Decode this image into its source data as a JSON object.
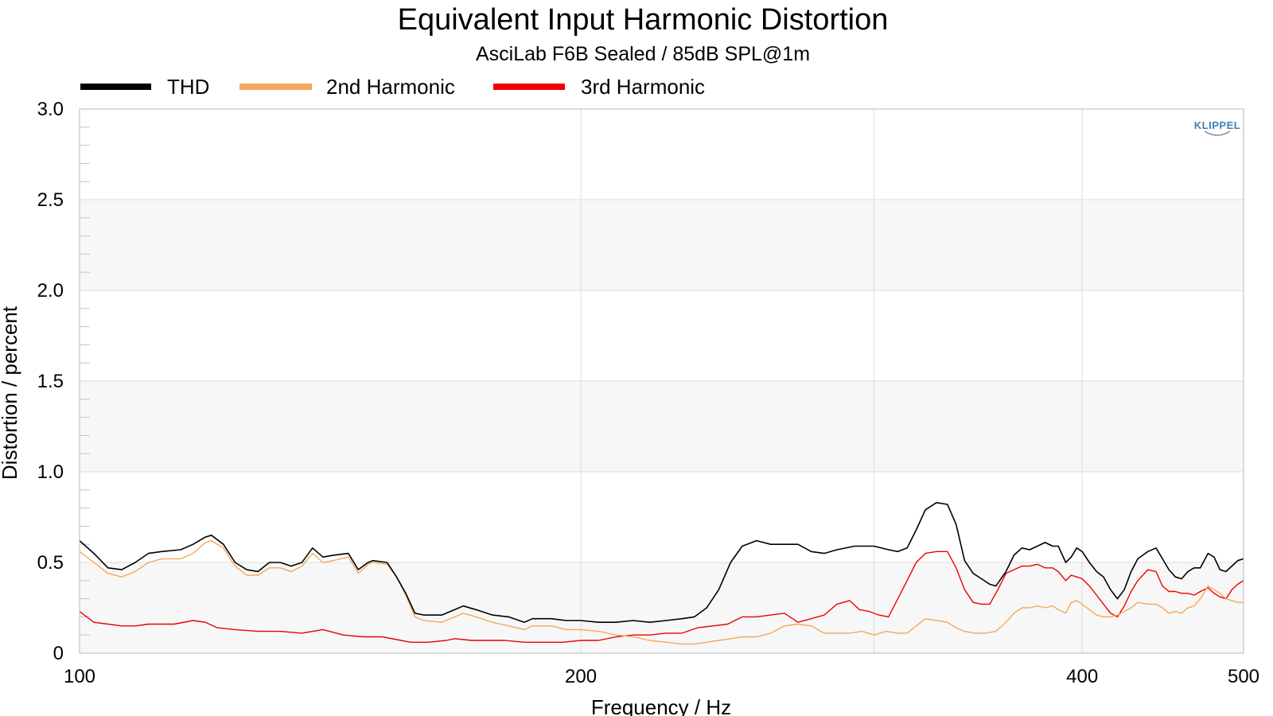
{
  "chart_data": {
    "type": "line",
    "title": "Equivalent Input Harmonic Distortion",
    "subtitle": "AsciLab F6B Sealed / 85dB SPL@1m",
    "xlabel": "Frequency / Hz",
    "ylabel": "Distortion / percent",
    "x_scale": "log",
    "xlim": [
      100,
      500
    ],
    "ylim": [
      0,
      3.0
    ],
    "x_ticks": [
      100,
      200,
      400,
      500
    ],
    "x_tick_labels": [
      "100",
      "200",
      "400",
      "500"
    ],
    "y_ticks": [
      0,
      0.5,
      1.0,
      1.5,
      2.0,
      2.5,
      3.0
    ],
    "y_tick_labels": [
      "0",
      "0.5",
      "1.0",
      "1.5",
      "2.0",
      "2.5",
      "3.0"
    ],
    "grid": true,
    "legend_position": "top-left",
    "watermark": "KLIPPEL",
    "series": [
      {
        "name": "THD",
        "color": "#000000",
        "points": [
          [
            100,
            0.62
          ],
          [
            102,
            0.55
          ],
          [
            104,
            0.47
          ],
          [
            106,
            0.46
          ],
          [
            108,
            0.5
          ],
          [
            110,
            0.55
          ],
          [
            112,
            0.56
          ],
          [
            115,
            0.57
          ],
          [
            117,
            0.6
          ],
          [
            119,
            0.64
          ],
          [
            120,
            0.65
          ],
          [
            122,
            0.6
          ],
          [
            124,
            0.5
          ],
          [
            126,
            0.46
          ],
          [
            128,
            0.45
          ],
          [
            130,
            0.5
          ],
          [
            132,
            0.5
          ],
          [
            134,
            0.48
          ],
          [
            136,
            0.5
          ],
          [
            138,
            0.58
          ],
          [
            140,
            0.53
          ],
          [
            142,
            0.54
          ],
          [
            145,
            0.55
          ],
          [
            147,
            0.46
          ],
          [
            149,
            0.5
          ],
          [
            150,
            0.51
          ],
          [
            153,
            0.5
          ],
          [
            155,
            0.42
          ],
          [
            157,
            0.33
          ],
          [
            159,
            0.22
          ],
          [
            161,
            0.21
          ],
          [
            165,
            0.21
          ],
          [
            168,
            0.24
          ],
          [
            170,
            0.26
          ],
          [
            173,
            0.24
          ],
          [
            177,
            0.21
          ],
          [
            181,
            0.2
          ],
          [
            185,
            0.17
          ],
          [
            187,
            0.19
          ],
          [
            192,
            0.19
          ],
          [
            196,
            0.18
          ],
          [
            200,
            0.18
          ],
          [
            205,
            0.17
          ],
          [
            210,
            0.17
          ],
          [
            215,
            0.18
          ],
          [
            220,
            0.17
          ],
          [
            225,
            0.18
          ],
          [
            230,
            0.19
          ],
          [
            234,
            0.2
          ],
          [
            238,
            0.25
          ],
          [
            242,
            0.35
          ],
          [
            246,
            0.5
          ],
          [
            250,
            0.59
          ],
          [
            255,
            0.62
          ],
          [
            260,
            0.6
          ],
          [
            270,
            0.6
          ],
          [
            275,
            0.56
          ],
          [
            280,
            0.55
          ],
          [
            285,
            0.57
          ],
          [
            292,
            0.59
          ],
          [
            300,
            0.59
          ],
          [
            306,
            0.57
          ],
          [
            310,
            0.56
          ],
          [
            314,
            0.58
          ],
          [
            318,
            0.68
          ],
          [
            322,
            0.79
          ],
          [
            327,
            0.83
          ],
          [
            332,
            0.82
          ],
          [
            336,
            0.71
          ],
          [
            340,
            0.51
          ],
          [
            344,
            0.44
          ],
          [
            348,
            0.41
          ],
          [
            352,
            0.38
          ],
          [
            355,
            0.37
          ],
          [
            360,
            0.45
          ],
          [
            364,
            0.54
          ],
          [
            368,
            0.58
          ],
          [
            372,
            0.57
          ],
          [
            376,
            0.59
          ],
          [
            380,
            0.61
          ],
          [
            384,
            0.59
          ],
          [
            387,
            0.59
          ],
          [
            391,
            0.5
          ],
          [
            394,
            0.53
          ],
          [
            397,
            0.58
          ],
          [
            400,
            0.56
          ],
          [
            404,
            0.5
          ],
          [
            408,
            0.45
          ],
          [
            412,
            0.42
          ],
          [
            416,
            0.35
          ],
          [
            420,
            0.3
          ],
          [
            424,
            0.35
          ],
          [
            428,
            0.45
          ],
          [
            432,
            0.52
          ],
          [
            438,
            0.56
          ],
          [
            443,
            0.58
          ],
          [
            447,
            0.52
          ],
          [
            451,
            0.46
          ],
          [
            455,
            0.42
          ],
          [
            459,
            0.41
          ],
          [
            463,
            0.45
          ],
          [
            467,
            0.47
          ],
          [
            471,
            0.47
          ],
          [
            476,
            0.55
          ],
          [
            480,
            0.53
          ],
          [
            484,
            0.46
          ],
          [
            488,
            0.45
          ],
          [
            492,
            0.48
          ],
          [
            496,
            0.51
          ],
          [
            500,
            0.52
          ]
        ]
      },
      {
        "name": "2nd Harmonic",
        "color": "#f5a75c",
        "points": [
          [
            100,
            0.56
          ],
          [
            102,
            0.5
          ],
          [
            104,
            0.44
          ],
          [
            106,
            0.42
          ],
          [
            108,
            0.45
          ],
          [
            110,
            0.5
          ],
          [
            112,
            0.52
          ],
          [
            115,
            0.52
          ],
          [
            117,
            0.55
          ],
          [
            119,
            0.61
          ],
          [
            120,
            0.62
          ],
          [
            122,
            0.58
          ],
          [
            124,
            0.48
          ],
          [
            126,
            0.43
          ],
          [
            128,
            0.43
          ],
          [
            130,
            0.47
          ],
          [
            132,
            0.47
          ],
          [
            134,
            0.45
          ],
          [
            136,
            0.48
          ],
          [
            138,
            0.55
          ],
          [
            140,
            0.5
          ],
          [
            142,
            0.51
          ],
          [
            145,
            0.53
          ],
          [
            147,
            0.44
          ],
          [
            149,
            0.49
          ],
          [
            150,
            0.5
          ],
          [
            153,
            0.49
          ],
          [
            155,
            0.42
          ],
          [
            157,
            0.32
          ],
          [
            159,
            0.2
          ],
          [
            161,
            0.18
          ],
          [
            165,
            0.17
          ],
          [
            168,
            0.2
          ],
          [
            170,
            0.22
          ],
          [
            173,
            0.2
          ],
          [
            177,
            0.17
          ],
          [
            181,
            0.15
          ],
          [
            185,
            0.13
          ],
          [
            187,
            0.15
          ],
          [
            192,
            0.15
          ],
          [
            196,
            0.13
          ],
          [
            200,
            0.13
          ],
          [
            205,
            0.12
          ],
          [
            210,
            0.1
          ],
          [
            215,
            0.09
          ],
          [
            220,
            0.07
          ],
          [
            225,
            0.06
          ],
          [
            230,
            0.05
          ],
          [
            234,
            0.05
          ],
          [
            238,
            0.06
          ],
          [
            242,
            0.07
          ],
          [
            246,
            0.08
          ],
          [
            250,
            0.09
          ],
          [
            255,
            0.09
          ],
          [
            260,
            0.11
          ],
          [
            265,
            0.15
          ],
          [
            270,
            0.16
          ],
          [
            275,
            0.15
          ],
          [
            280,
            0.11
          ],
          [
            285,
            0.11
          ],
          [
            290,
            0.11
          ],
          [
            295,
            0.12
          ],
          [
            300,
            0.1
          ],
          [
            305,
            0.12
          ],
          [
            310,
            0.11
          ],
          [
            314,
            0.11
          ],
          [
            318,
            0.15
          ],
          [
            322,
            0.19
          ],
          [
            327,
            0.18
          ],
          [
            332,
            0.17
          ],
          [
            336,
            0.14
          ],
          [
            340,
            0.12
          ],
          [
            345,
            0.11
          ],
          [
            350,
            0.11
          ],
          [
            355,
            0.12
          ],
          [
            360,
            0.17
          ],
          [
            364,
            0.22
          ],
          [
            368,
            0.25
          ],
          [
            372,
            0.25
          ],
          [
            376,
            0.26
          ],
          [
            380,
            0.25
          ],
          [
            384,
            0.26
          ],
          [
            387,
            0.24
          ],
          [
            391,
            0.22
          ],
          [
            394,
            0.28
          ],
          [
            397,
            0.29
          ],
          [
            400,
            0.27
          ],
          [
            404,
            0.24
          ],
          [
            408,
            0.21
          ],
          [
            412,
            0.2
          ],
          [
            416,
            0.2
          ],
          [
            420,
            0.21
          ],
          [
            424,
            0.23
          ],
          [
            428,
            0.25
          ],
          [
            432,
            0.28
          ],
          [
            438,
            0.27
          ],
          [
            443,
            0.27
          ],
          [
            447,
            0.25
          ],
          [
            451,
            0.22
          ],
          [
            455,
            0.23
          ],
          [
            459,
            0.22
          ],
          [
            463,
            0.25
          ],
          [
            467,
            0.26
          ],
          [
            471,
            0.3
          ],
          [
            476,
            0.37
          ],
          [
            480,
            0.35
          ],
          [
            484,
            0.33
          ],
          [
            488,
            0.3
          ],
          [
            492,
            0.29
          ],
          [
            496,
            0.28
          ],
          [
            500,
            0.28
          ]
        ]
      },
      {
        "name": "3rd Harmonic",
        "color": "#ee0000",
        "points": [
          [
            100,
            0.23
          ],
          [
            102,
            0.17
          ],
          [
            104,
            0.16
          ],
          [
            106,
            0.15
          ],
          [
            108,
            0.15
          ],
          [
            110,
            0.16
          ],
          [
            114,
            0.16
          ],
          [
            117,
            0.18
          ],
          [
            119,
            0.17
          ],
          [
            121,
            0.14
          ],
          [
            124,
            0.13
          ],
          [
            128,
            0.12
          ],
          [
            132,
            0.12
          ],
          [
            136,
            0.11
          ],
          [
            140,
            0.13
          ],
          [
            144,
            0.1
          ],
          [
            148,
            0.09
          ],
          [
            152,
            0.09
          ],
          [
            156,
            0.07
          ],
          [
            158,
            0.06
          ],
          [
            162,
            0.06
          ],
          [
            166,
            0.07
          ],
          [
            168,
            0.08
          ],
          [
            172,
            0.07
          ],
          [
            176,
            0.07
          ],
          [
            180,
            0.07
          ],
          [
            185,
            0.06
          ],
          [
            190,
            0.06
          ],
          [
            195,
            0.06
          ],
          [
            200,
            0.07
          ],
          [
            205,
            0.07
          ],
          [
            210,
            0.09
          ],
          [
            215,
            0.1
          ],
          [
            220,
            0.1
          ],
          [
            225,
            0.11
          ],
          [
            230,
            0.11
          ],
          [
            235,
            0.14
          ],
          [
            240,
            0.15
          ],
          [
            245,
            0.16
          ],
          [
            250,
            0.2
          ],
          [
            255,
            0.2
          ],
          [
            260,
            0.21
          ],
          [
            265,
            0.22
          ],
          [
            270,
            0.17
          ],
          [
            275,
            0.19
          ],
          [
            280,
            0.21
          ],
          [
            285,
            0.27
          ],
          [
            290,
            0.29
          ],
          [
            294,
            0.24
          ],
          [
            298,
            0.23
          ],
          [
            302,
            0.21
          ],
          [
            306,
            0.2
          ],
          [
            310,
            0.3
          ],
          [
            314,
            0.4
          ],
          [
            318,
            0.5
          ],
          [
            322,
            0.55
          ],
          [
            327,
            0.56
          ],
          [
            332,
            0.56
          ],
          [
            336,
            0.47
          ],
          [
            340,
            0.35
          ],
          [
            344,
            0.28
          ],
          [
            348,
            0.27
          ],
          [
            352,
            0.27
          ],
          [
            356,
            0.35
          ],
          [
            360,
            0.44
          ],
          [
            364,
            0.46
          ],
          [
            368,
            0.48
          ],
          [
            372,
            0.48
          ],
          [
            376,
            0.49
          ],
          [
            380,
            0.47
          ],
          [
            384,
            0.47
          ],
          [
            387,
            0.45
          ],
          [
            391,
            0.4
          ],
          [
            394,
            0.43
          ],
          [
            397,
            0.42
          ],
          [
            400,
            0.41
          ],
          [
            404,
            0.37
          ],
          [
            408,
            0.32
          ],
          [
            412,
            0.27
          ],
          [
            416,
            0.22
          ],
          [
            420,
            0.2
          ],
          [
            424,
            0.26
          ],
          [
            428,
            0.34
          ],
          [
            432,
            0.4
          ],
          [
            438,
            0.46
          ],
          [
            443,
            0.45
          ],
          [
            447,
            0.37
          ],
          [
            451,
            0.34
          ],
          [
            455,
            0.34
          ],
          [
            459,
            0.33
          ],
          [
            463,
            0.33
          ],
          [
            467,
            0.32
          ],
          [
            471,
            0.34
          ],
          [
            476,
            0.36
          ],
          [
            480,
            0.33
          ],
          [
            484,
            0.31
          ],
          [
            488,
            0.3
          ],
          [
            492,
            0.35
          ],
          [
            496,
            0.38
          ],
          [
            500,
            0.4
          ]
        ]
      }
    ]
  }
}
